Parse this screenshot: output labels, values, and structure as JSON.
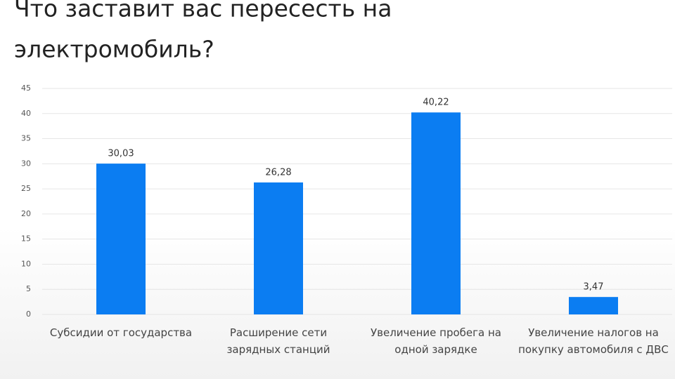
{
  "chart_data": {
    "type": "bar",
    "title": [
      "Что заставит вас пересесть на",
      "электромобиль?"
    ],
    "categories": [
      "Субсидии от государства",
      "Расширение сети зарядных станций",
      "Увеличение пробега на одной зарядке",
      "Увеличение налогов на покупку автомобиля с ДВС"
    ],
    "values": [
      30.03,
      26.28,
      40.22,
      3.47
    ],
    "value_labels": [
      "30,03",
      "26,28",
      "40,22",
      "3,47"
    ],
    "color": "#0b7df2",
    "ylim": [
      0,
      45
    ],
    "yticks": [
      0,
      5,
      10,
      15,
      20,
      25,
      30,
      35,
      40,
      45
    ],
    "grid": true
  }
}
